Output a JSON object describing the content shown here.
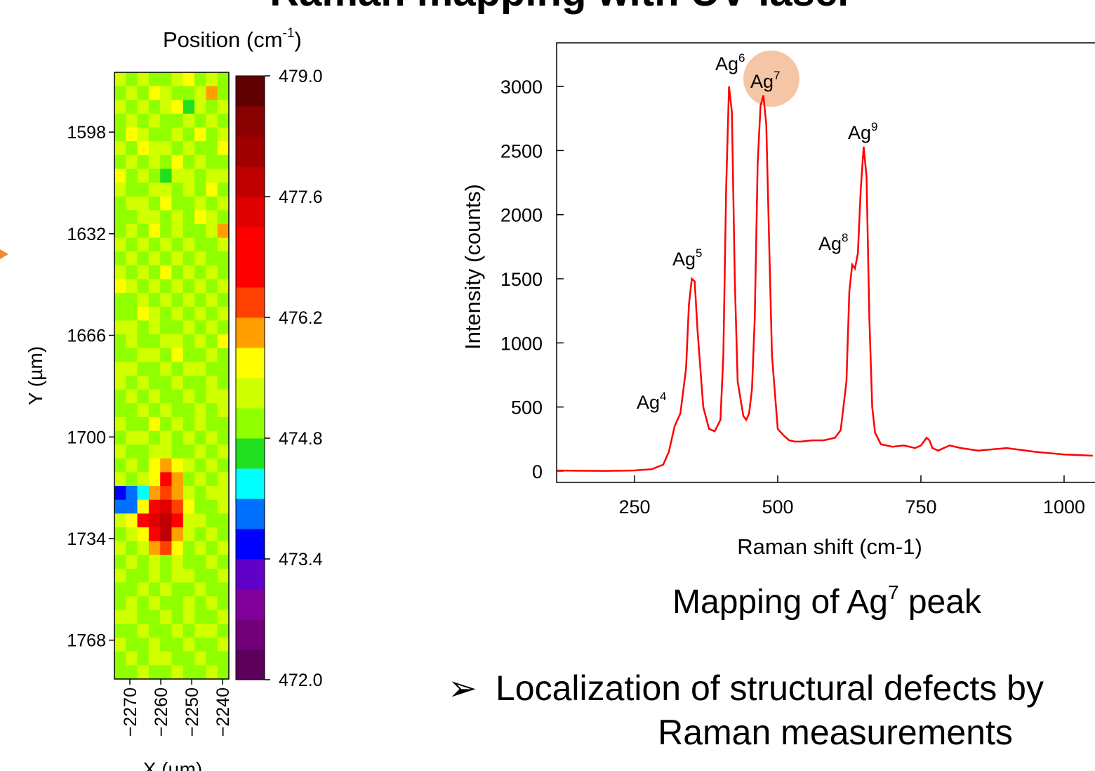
{
  "title": "Raman mapping with UV laser",
  "caption": {
    "text": "Mapping of Ag",
    "sup": "7",
    "tail": " peak"
  },
  "bullet": {
    "symbol": "➢",
    "line1": "Localization of structural defects by",
    "line2": "Raman measurements"
  },
  "chart_data": [
    {
      "type": "heatmap",
      "colorbar_title": {
        "text": "Position (cm",
        "sup": "-1",
        "tail": ")"
      },
      "x_label": "X (µm)",
      "y_label": "Y (µm)",
      "xlim": [
        -2275,
        -2238
      ],
      "ylim": [
        1578,
        1781
      ],
      "y_reversed": true,
      "xticks": [
        {
          "value": -2270,
          "label": "−2270"
        },
        {
          "value": -2260,
          "label": "−2260"
        },
        {
          "value": -2250,
          "label": "−2250"
        },
        {
          "value": -2240,
          "label": "−2240"
        }
      ],
      "yticks": [
        1598,
        1632,
        1666,
        1700,
        1734,
        1768
      ],
      "clim": [
        472,
        479
      ],
      "cticks": [
        {
          "value": 472,
          "label": "472.0"
        },
        473.4,
        474.8,
        476.2,
        477.6,
        {
          "value": 479,
          "label": "479.0"
        }
      ],
      "colors": [
        "#5c005c",
        "#72007a",
        "#82009a",
        "#6000c8",
        "#0000ff",
        "#0070ff",
        "#00ffff",
        "#20e020",
        "#90ff00",
        "#d0ff00",
        "#ffff00",
        "#ffa000",
        "#ff4000",
        "#ff0000",
        "#ff0000",
        "#e00000",
        "#c00000",
        "#a00000",
        "#880000",
        "#600000"
      ],
      "values": [
        [
          475.2,
          475.0,
          475.4,
          475.1,
          474.9,
          475.3,
          475.6,
          475.0,
          475.2,
          474.8
        ],
        [
          475.0,
          475.3,
          474.9,
          475.5,
          475.2,
          475.0,
          475.1,
          475.4,
          476.0,
          475.1
        ],
        [
          475.4,
          474.9,
          475.2,
          475.0,
          475.3,
          475.6,
          474.7,
          475.2,
          475.0,
          475.3
        ],
        [
          474.9,
          475.2,
          475.0,
          475.3,
          475.1,
          475.0,
          475.4,
          474.9,
          475.3,
          475.1
        ],
        [
          475.1,
          475.5,
          475.2,
          474.8,
          475.0,
          475.3,
          475.1,
          475.6,
          475.0,
          475.2
        ],
        [
          475.3,
          475.0,
          475.6,
          475.2,
          475.4,
          474.9,
          475.2,
          475.0,
          475.1,
          475.5
        ],
        [
          475.0,
          475.2,
          474.9,
          475.3,
          475.1,
          475.5,
          475.0,
          475.3,
          474.8,
          475.0
        ],
        [
          475.6,
          475.1,
          475.3,
          475.0,
          474.7,
          475.2,
          475.4,
          475.1,
          475.2,
          475.3
        ],
        [
          475.2,
          474.9,
          475.1,
          475.4,
          475.2,
          475.0,
          475.3,
          475.0,
          475.5,
          475.1
        ],
        [
          475.0,
          475.3,
          475.2,
          475.0,
          475.5,
          475.1,
          474.9,
          475.2,
          475.0,
          475.4
        ],
        [
          475.1,
          475.0,
          475.4,
          475.2,
          475.0,
          475.3,
          475.1,
          475.6,
          475.2,
          475.0
        ],
        [
          474.8,
          475.2,
          475.0,
          475.5,
          475.1,
          475.2,
          475.0,
          475.1,
          475.3,
          476.0
        ],
        [
          475.3,
          475.1,
          475.2,
          475.0,
          475.3,
          474.9,
          475.4,
          475.0,
          475.1,
          475.2
        ],
        [
          475.0,
          475.4,
          474.9,
          475.2,
          475.0,
          475.2,
          475.1,
          475.3,
          474.9,
          475.1
        ],
        [
          475.2,
          475.0,
          475.3,
          475.1,
          475.6,
          475.0,
          475.2,
          475.0,
          475.4,
          475.0
        ],
        [
          475.5,
          475.2,
          475.0,
          475.3,
          475.1,
          475.4,
          474.8,
          475.2,
          475.0,
          475.3
        ],
        [
          475.0,
          475.1,
          475.2,
          474.9,
          475.2,
          475.0,
          475.3,
          475.1,
          475.2,
          475.0
        ],
        [
          475.1,
          474.9,
          475.5,
          475.2,
          475.0,
          475.3,
          475.0,
          475.4,
          475.1,
          475.2
        ],
        [
          475.3,
          475.2,
          475.0,
          475.4,
          475.1,
          475.0,
          475.2,
          475.0,
          475.3,
          475.1
        ],
        [
          475.0,
          475.4,
          475.1,
          475.0,
          475.3,
          475.2,
          474.9,
          475.2,
          475.0,
          475.5
        ],
        [
          474.9,
          475.0,
          475.3,
          475.2,
          475.0,
          475.5,
          475.1,
          475.0,
          475.2,
          475.0
        ],
        [
          475.2,
          475.3,
          475.0,
          475.1,
          475.4,
          475.0,
          475.2,
          475.3,
          474.9,
          475.1
        ],
        [
          475.4,
          475.0,
          475.2,
          475.0,
          475.1,
          475.3,
          475.0,
          475.1,
          475.2,
          475.0
        ],
        [
          475.0,
          475.2,
          474.8,
          475.3,
          475.0,
          475.1,
          475.4,
          475.0,
          475.3,
          475.2
        ],
        [
          475.1,
          475.0,
          475.2,
          475.0,
          475.2,
          474.9,
          475.1,
          475.2,
          475.0,
          475.3
        ],
        [
          475.3,
          475.1,
          475.0,
          475.5,
          475.0,
          475.2,
          475.0,
          475.3,
          475.1,
          475.0
        ],
        [
          475.0,
          475.3,
          475.2,
          475.1,
          475.3,
          475.0,
          475.2,
          474.9,
          475.2,
          475.1
        ],
        [
          475.2,
          475.0,
          475.1,
          475.2,
          475.4,
          475.1,
          475.0,
          475.2,
          475.0,
          475.3
        ],
        [
          475.1,
          475.4,
          475.0,
          475.6,
          476.0,
          475.5,
          475.2,
          475.0,
          475.3,
          475.1
        ],
        [
          475.3,
          475.0,
          475.2,
          475.8,
          476.6,
          475.9,
          475.1,
          475.4,
          475.0,
          475.2
        ],
        [
          473.6,
          473.9,
          474.3,
          475.9,
          476.4,
          476.1,
          475.3,
          475.0,
          475.2,
          475.4
        ],
        [
          474.0,
          473.8,
          475.8,
          477.0,
          477.3,
          476.3,
          475.5,
          475.1,
          475.0,
          475.3
        ],
        [
          475.2,
          475.6,
          476.9,
          477.5,
          477.7,
          476.8,
          475.2,
          475.3,
          475.1,
          475.0
        ],
        [
          475.0,
          475.3,
          475.7,
          477.2,
          477.6,
          476.2,
          475.4,
          475.0,
          475.2,
          475.1
        ],
        [
          475.2,
          475.0,
          475.4,
          475.9,
          476.5,
          475.6,
          475.1,
          475.3,
          475.0,
          475.2
        ],
        [
          475.0,
          475.2,
          475.1,
          475.3,
          475.0,
          475.2,
          475.0,
          475.1,
          475.3,
          475.0
        ],
        [
          475.3,
          475.1,
          475.0,
          475.2,
          475.1,
          475.4,
          475.2,
          475.0,
          475.1,
          475.2
        ],
        [
          475.1,
          475.0,
          475.3,
          475.0,
          475.2,
          475.0,
          475.1,
          475.3,
          475.0,
          474.9
        ],
        [
          475.0,
          475.2,
          475.1,
          475.4,
          475.0,
          475.1,
          475.3,
          475.0,
          475.2,
          475.1
        ],
        [
          475.2,
          475.4,
          475.0,
          475.1,
          475.3,
          475.0,
          475.2,
          475.1,
          475.0,
          475.3
        ],
        [
          475.0,
          475.1,
          475.2,
          475.0,
          475.1,
          475.3,
          475.0,
          475.2,
          475.4,
          475.0
        ],
        [
          475.3,
          475.0,
          475.1,
          475.2,
          475.0,
          475.1,
          475.2,
          475.0,
          475.1,
          475.2
        ],
        [
          475.1,
          475.2,
          475.0,
          475.3,
          475.2,
          475.0,
          475.1,
          475.3,
          475.0,
          475.1
        ],
        [
          475.0,
          475.1,
          475.3,
          475.0,
          475.1,
          475.2,
          475.0,
          475.1,
          475.2,
          475.0
        ]
      ]
    },
    {
      "type": "line",
      "x_label": "Raman shift (cm-1)",
      "y_label": "Intensity (counts)",
      "xlim": [
        114,
        1060
      ],
      "ylim": [
        -88,
        3340
      ],
      "xticks": [
        250,
        500,
        750,
        1000
      ],
      "yticks": [
        0,
        500,
        1000,
        1500,
        2000,
        2500,
        3000
      ],
      "x": [
        114,
        150,
        200,
        250,
        280,
        300,
        310,
        320,
        330,
        340,
        345,
        350,
        355,
        360,
        370,
        380,
        390,
        400,
        405,
        410,
        415,
        420,
        425,
        430,
        440,
        445,
        450,
        455,
        460,
        465,
        470,
        475,
        480,
        485,
        490,
        500,
        510,
        520,
        530,
        540,
        560,
        580,
        600,
        610,
        620,
        625,
        630,
        635,
        640,
        645,
        650,
        655,
        660,
        665,
        670,
        680,
        700,
        720,
        740,
        750,
        760,
        765,
        770,
        780,
        800,
        820,
        850,
        900,
        950,
        1000,
        1050
      ],
      "series": [
        {
          "color": "#ff0000",
          "values": [
            5,
            3,
            2,
            5,
            15,
            50,
            150,
            350,
            450,
            800,
            1300,
            1500,
            1480,
            1100,
            500,
            330,
            310,
            400,
            900,
            2200,
            3000,
            2800,
            1500,
            700,
            430,
            400,
            450,
            640,
            1200,
            2400,
            2850,
            2930,
            2700,
            1800,
            900,
            330,
            280,
            240,
            230,
            230,
            240,
            240,
            260,
            320,
            700,
            1400,
            1610,
            1580,
            1700,
            2200,
            2530,
            2300,
            1200,
            500,
            300,
            210,
            190,
            200,
            180,
            200,
            260,
            240,
            180,
            160,
            200,
            180,
            160,
            180,
            150,
            130,
            120
          ]
        }
      ],
      "annotations": [
        {
          "text": "Ag",
          "sup": "4"
        },
        {
          "text": "Ag",
          "sup": "5"
        },
        {
          "text": "Ag",
          "sup": "6"
        },
        {
          "text": "Ag",
          "sup": "7"
        },
        {
          "text": "Ag",
          "sup": "8"
        },
        {
          "text": "Ag",
          "sup": "9"
        }
      ]
    }
  ]
}
